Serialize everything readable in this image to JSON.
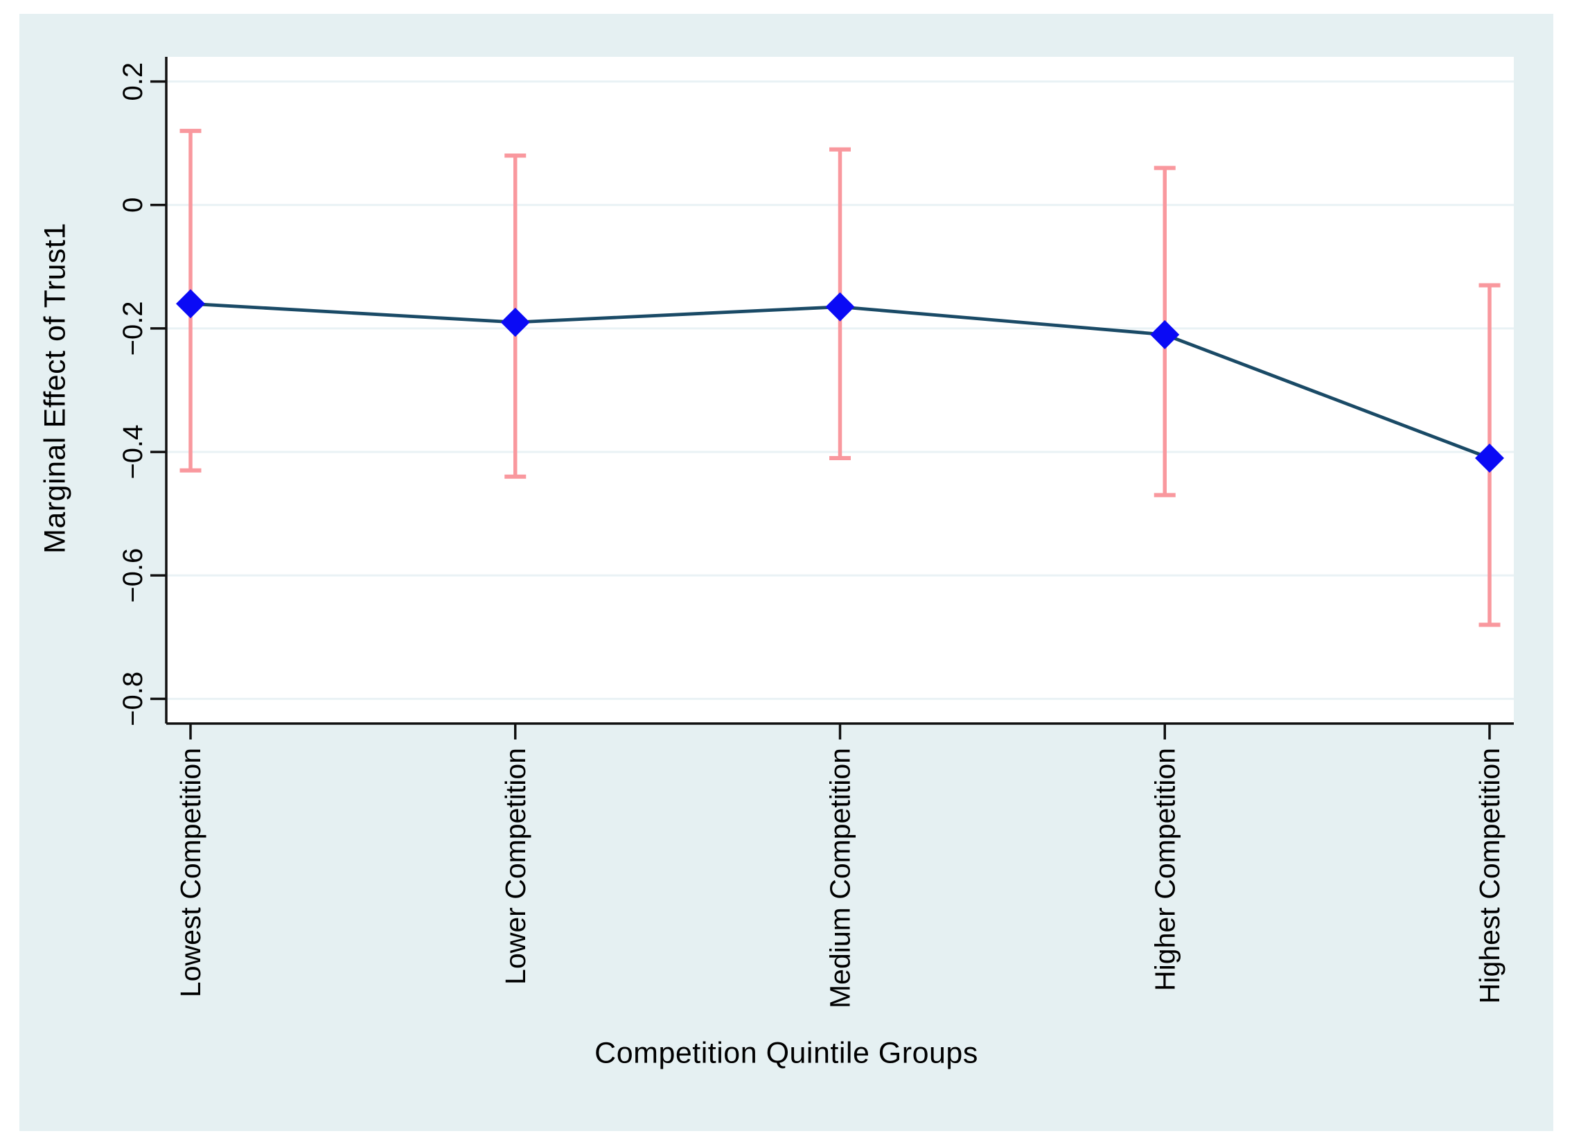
{
  "chart_data": {
    "type": "line",
    "title": "",
    "xlabel": "Competition Quintile Groups",
    "ylabel": "Marginal Effect of Trust1",
    "categories": [
      "Lowest Competition",
      "Lower Competition",
      "Medium Competition",
      "Higher Competition",
      "Highest Competition"
    ],
    "series": [
      {
        "name": "marginal-effect-of-trust1",
        "values": [
          -0.16,
          -0.19,
          -0.165,
          -0.21,
          -0.41
        ]
      }
    ],
    "ci_low": [
      -0.43,
      -0.44,
      -0.41,
      -0.47,
      -0.68
    ],
    "ci_high": [
      0.12,
      0.08,
      0.09,
      0.06,
      -0.13
    ],
    "ytick_values": [
      0.2,
      0,
      -0.2,
      -0.4,
      -0.6,
      -0.8
    ],
    "ytick_labels": [
      "0.2",
      "0",
      "−0.2",
      "−0.4",
      "−0.6",
      "−0.8"
    ],
    "ylim": [
      -0.84,
      0.24
    ],
    "grid": true,
    "legend_position": "none",
    "marker": "diamond",
    "colors": {
      "marker": "#0a0af5",
      "line": "#1a4a66",
      "ci": "#f9989e",
      "plot_bg": "#ffffff",
      "frame_bg": "#e5f0f2",
      "gridline": "#e9f2f5",
      "axis": "#111111",
      "text": "#000000"
    }
  }
}
